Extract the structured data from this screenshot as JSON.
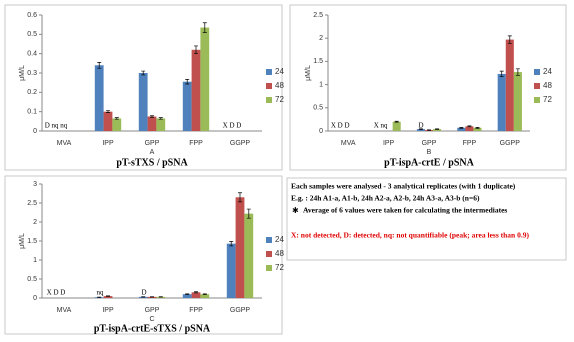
{
  "chart_data": [
    {
      "type": "bar",
      "title": "pT-sTXS / pSNA",
      "panel_label": "A",
      "y_label": "μM/L",
      "categories": [
        "MVA",
        "IPP",
        "GPP",
        "FPP",
        "GGPP"
      ],
      "status_labels": [
        "D nq nq",
        null,
        null,
        null,
        "X D D"
      ],
      "series": [
        {
          "name": "24",
          "color": "#4f81bd",
          "values": [
            null,
            0.34,
            0.3,
            0.255,
            null
          ],
          "errors": [
            null,
            0.015,
            0.01,
            0.012,
            null
          ]
        },
        {
          "name": "48",
          "color": "#c0504d",
          "values": [
            null,
            0.1,
            0.075,
            0.42,
            null
          ],
          "errors": [
            null,
            0.005,
            0.004,
            0.02,
            null
          ]
        },
        {
          "name": "72",
          "color": "#9bbb59",
          "values": [
            null,
            0.065,
            0.065,
            0.535,
            null
          ],
          "errors": [
            null,
            0.004,
            0.004,
            0.025,
            null
          ]
        }
      ],
      "ylim": [
        0,
        0.6
      ],
      "yticks": [
        0,
        0.1,
        0.2,
        0.3,
        0.4,
        0.5,
        0.6
      ],
      "legend": "right"
    },
    {
      "type": "bar",
      "title": "pT-ispA-crtE / pSNA",
      "panel_label": "B",
      "y_label": "μM/L",
      "categories": [
        "MVA",
        "IPP",
        "GPP",
        "FPP",
        "GGPP"
      ],
      "status_labels": [
        "X D D",
        "X nq",
        "D",
        null,
        null
      ],
      "series": [
        {
          "name": "24",
          "color": "#4f81bd",
          "values": [
            null,
            null,
            0.04,
            0.07,
            1.23
          ],
          "errors": [
            null,
            null,
            0.005,
            0.01,
            0.06
          ]
        },
        {
          "name": "48",
          "color": "#c0504d",
          "values": [
            null,
            null,
            0.02,
            0.1,
            1.97
          ],
          "errors": [
            null,
            null,
            0.005,
            0.01,
            0.08
          ]
        },
        {
          "name": "72",
          "color": "#9bbb59",
          "values": [
            null,
            0.2,
            0.04,
            0.07,
            1.27
          ],
          "errors": [
            null,
            0.01,
            0.005,
            0.01,
            0.07
          ]
        }
      ],
      "ylim": [
        0,
        2.5
      ],
      "yticks": [
        0,
        0.5,
        1,
        1.5,
        2,
        2.5
      ],
      "legend": "right"
    },
    {
      "type": "bar",
      "title": "pT-ispA-crtE-sTXS / pSNA",
      "panel_label": "C",
      "y_label": "μM/L",
      "categories": [
        "MVA",
        "IPP",
        "GPP",
        "FPP",
        "GGPP"
      ],
      "status_labels": [
        "X D D",
        "nq",
        "D",
        null,
        null
      ],
      "series": [
        {
          "name": "24",
          "color": "#4f81bd",
          "values": [
            null,
            0.02,
            0.03,
            0.1,
            1.43
          ],
          "errors": [
            null,
            0.005,
            0.005,
            0.01,
            0.06
          ]
        },
        {
          "name": "48",
          "color": "#c0504d",
          "values": [
            null,
            0.05,
            0.03,
            0.15,
            2.65
          ],
          "errors": [
            null,
            0.005,
            0.005,
            0.015,
            0.12
          ]
        },
        {
          "name": "72",
          "color": "#9bbb59",
          "values": [
            null,
            null,
            0.03,
            0.1,
            2.22
          ],
          "errors": [
            null,
            null,
            0.005,
            0.01,
            0.12
          ]
        }
      ],
      "ylim": [
        0,
        3
      ],
      "yticks": [
        0,
        0.5,
        1,
        1.5,
        2,
        2.5,
        3
      ],
      "legend": "right"
    }
  ],
  "notes": {
    "lines": [
      "Each samples were analysed - 3 analytical replicates (with 1 duplicate)",
      "E.g. : 24h A1-a, A1-b, 24h A2-a, A2-b, 24h A3-a, A3-b (n=6)",
      "Average of 6 values were taken for calculating the intermediates"
    ],
    "legend_text": "X: not detected, D: detected, nq: not quantifiable (peak; area less than 0.9)"
  }
}
